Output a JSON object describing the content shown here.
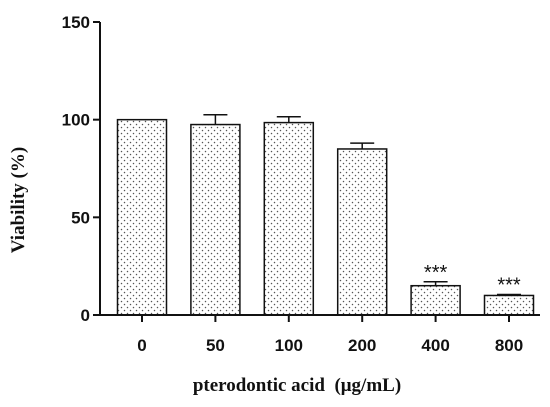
{
  "chart_data": {
    "type": "bar",
    "title": "",
    "xlabel": "pterodontic acid  (μg/mL)",
    "ylabel": "Viability (%)",
    "ylim": [
      0,
      150
    ],
    "yticks": [
      0,
      50,
      100,
      150
    ],
    "categories": [
      "0",
      "50",
      "100",
      "200",
      "400",
      "800"
    ],
    "series": [
      {
        "values": [
          100,
          97.5,
          98.5,
          85,
          15,
          10
        ],
        "error": [
          0,
          5,
          3,
          3,
          2,
          0.5
        ]
      }
    ],
    "annotations": [
      "",
      "",
      "",
      "",
      "***",
      "***"
    ],
    "grid": false,
    "legend": "none",
    "bar_fill": "dotted",
    "colors": {
      "bar_fill": "#ffffff",
      "bar_stroke": "#111111",
      "dot": "#555555"
    }
  }
}
